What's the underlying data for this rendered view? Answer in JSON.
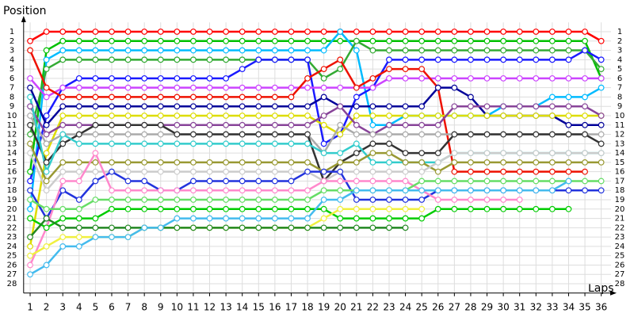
{
  "chart_data": {
    "type": "line",
    "y_label": "Position",
    "x_label": "Laps",
    "x": [
      1,
      2,
      3,
      4,
      5,
      6,
      7,
      8,
      9,
      10,
      11,
      12,
      13,
      14,
      15,
      16,
      17,
      18,
      19,
      20,
      21,
      22,
      23,
      24,
      25,
      26,
      27,
      28,
      29,
      30,
      31,
      32,
      33,
      34,
      35,
      36
    ],
    "xlim": [
      0.6,
      36.6
    ],
    "xticks": [
      1,
      2,
      3,
      4,
      5,
      6,
      7,
      8,
      9,
      10,
      11,
      12,
      13,
      14,
      15,
      16,
      17,
      18,
      19,
      20,
      21,
      22,
      23,
      24,
      25,
      26,
      27,
      28,
      29,
      30,
      31,
      32,
      33,
      34,
      35,
      36
    ],
    "ylim": [
      29,
      0
    ],
    "yticks": [
      1,
      2,
      3,
      4,
      5,
      6,
      7,
      8,
      9,
      10,
      11,
      12,
      13,
      14,
      15,
      16,
      17,
      18,
      19,
      20,
      21,
      22,
      23,
      24,
      25,
      26,
      27,
      28
    ],
    "grid": true,
    "series": [
      {
        "color": "#ff0000",
        "values": [
          2,
          1,
          1,
          1,
          1,
          1,
          1,
          1,
          1,
          1,
          1,
          1,
          1,
          1,
          1,
          1,
          1,
          1,
          1,
          1,
          1,
          1,
          1,
          1,
          1,
          1,
          1,
          1,
          1,
          1,
          1,
          1,
          1,
          1,
          1,
          2
        ]
      },
      {
        "color": "#00c000",
        "values": [
          16,
          3,
          2,
          2,
          2,
          2,
          2,
          2,
          2,
          2,
          2,
          2,
          2,
          2,
          2,
          2,
          2,
          2,
          2,
          2,
          2,
          2,
          2,
          2,
          2,
          2,
          2,
          2,
          2,
          2,
          2,
          2,
          2,
          2,
          2,
          6
        ]
      },
      {
        "color": "#00bbff",
        "values": [
          20,
          4,
          3,
          3,
          3,
          3,
          3,
          3,
          3,
          3,
          3,
          3,
          3,
          3,
          3,
          3,
          3,
          3,
          3,
          1,
          3,
          11,
          11,
          10,
          10,
          10,
          10,
          10,
          10,
          9,
          9,
          9,
          8,
          8,
          8,
          7
        ]
      },
      {
        "color": "#33aa33",
        "values": [
          12,
          5,
          4,
          4,
          4,
          4,
          4,
          4,
          4,
          4,
          4,
          4,
          4,
          4,
          4,
          4,
          4,
          4,
          6,
          5,
          2,
          3,
          3,
          3,
          3,
          3,
          3,
          3,
          3,
          3,
          3,
          3,
          3,
          3,
          3,
          5
        ]
      },
      {
        "color": "#1a1aff",
        "values": [
          17,
          10,
          7,
          6,
          6,
          6,
          6,
          6,
          6,
          6,
          6,
          6,
          6,
          5,
          4,
          4,
          4,
          4,
          13,
          12,
          8,
          7,
          4,
          4,
          4,
          4,
          4,
          4,
          4,
          4,
          4,
          4,
          4,
          4,
          3,
          4
        ]
      },
      {
        "color": "#cc44ff",
        "values": [
          6,
          8,
          7,
          7,
          7,
          7,
          7,
          7,
          7,
          7,
          7,
          7,
          7,
          7,
          7,
          7,
          7,
          7,
          7,
          7,
          7,
          7,
          6,
          6,
          6,
          6,
          6,
          6,
          6,
          6,
          6,
          6,
          6,
          6,
          6,
          6
        ]
      },
      {
        "color": "#ee1100",
        "values": [
          3,
          7,
          8,
          8,
          8,
          8,
          8,
          8,
          8,
          8,
          8,
          8,
          8,
          8,
          8,
          8,
          8,
          6,
          5,
          4,
          7,
          6,
          5,
          5,
          5,
          7,
          16,
          16,
          16,
          16,
          16,
          16,
          16,
          16,
          16,
          null
        ]
      },
      {
        "color": "#000099",
        "values": [
          7,
          11,
          9,
          9,
          9,
          9,
          9,
          9,
          9,
          9,
          9,
          9,
          9,
          9,
          9,
          9,
          9,
          9,
          8,
          9,
          9,
          9,
          9,
          9,
          9,
          7,
          7,
          8,
          10,
          10,
          10,
          10,
          10,
          11,
          11,
          11
        ]
      },
      {
        "color": "#dddd00",
        "values": [
          24,
          14,
          10,
          10,
          10,
          10,
          10,
          10,
          10,
          10,
          10,
          10,
          10,
          10,
          10,
          10,
          10,
          10,
          11,
          12,
          10,
          10,
          10,
          10,
          10,
          10,
          10,
          10,
          10,
          10,
          10,
          10,
          10,
          10,
          10,
          10
        ]
      },
      {
        "color": "#884499",
        "values": [
          9,
          12,
          11,
          11,
          11,
          11,
          11,
          11,
          11,
          11,
          11,
          11,
          11,
          11,
          11,
          11,
          11,
          11,
          10,
          9,
          11,
          12,
          11,
          11,
          11,
          11,
          9,
          9,
          9,
          9,
          9,
          9,
          9,
          9,
          9,
          10
        ]
      },
      {
        "color": "#aaaaaa",
        "values": [
          10,
          13,
          12,
          12,
          12,
          12,
          12,
          12,
          12,
          12,
          12,
          12,
          12,
          12,
          12,
          12,
          12,
          12,
          14,
          11,
          12,
          12,
          12,
          12,
          12,
          12,
          12,
          12,
          12,
          12,
          12,
          12,
          12,
          12,
          12,
          12
        ]
      },
      {
        "color": "#333333",
        "values": [
          11,
          15,
          13,
          12,
          11,
          11,
          11,
          11,
          11,
          12,
          12,
          12,
          12,
          12,
          12,
          12,
          12,
          12,
          17,
          15,
          14,
          13,
          13,
          14,
          14,
          14,
          12,
          12,
          12,
          12,
          12,
          12,
          12,
          12,
          12,
          13
        ]
      },
      {
        "color": "#33cccc",
        "values": [
          8,
          16,
          12,
          13,
          13,
          13,
          13,
          13,
          13,
          13,
          13,
          13,
          13,
          13,
          13,
          13,
          13,
          13,
          14,
          14,
          13,
          15,
          15,
          15,
          15,
          15,
          14,
          14,
          14,
          14,
          14,
          14,
          14,
          14,
          14,
          14
        ]
      },
      {
        "color": "#999933",
        "values": [
          13,
          17,
          15,
          15,
          15,
          15,
          15,
          15,
          15,
          15,
          15,
          15,
          15,
          15,
          15,
          15,
          15,
          15,
          16,
          15,
          15,
          14,
          14,
          15,
          15,
          16,
          15,
          15,
          15,
          15,
          15,
          15,
          15,
          15,
          15,
          15
        ]
      },
      {
        "color": "#cccccc",
        "values": [
          14,
          18,
          16,
          16,
          16,
          16,
          16,
          16,
          16,
          16,
          16,
          16,
          16,
          16,
          16,
          16,
          16,
          16,
          17,
          16,
          16,
          16,
          16,
          16,
          16,
          15,
          14,
          14,
          14,
          14,
          14,
          14,
          14,
          14,
          14,
          14
        ]
      },
      {
        "color": "#2233dd",
        "values": [
          18,
          21,
          18,
          19,
          17,
          16,
          17,
          17,
          18,
          18,
          17,
          17,
          17,
          17,
          17,
          17,
          17,
          16,
          16,
          16,
          19,
          19,
          19,
          19,
          19,
          18,
          18,
          18,
          18,
          18,
          18,
          18,
          18,
          18,
          18,
          18
        ]
      },
      {
        "color": "#ff88cc",
        "values": [
          26,
          22,
          17,
          17,
          14,
          18,
          18,
          18,
          18,
          18,
          18,
          18,
          18,
          18,
          18,
          18,
          18,
          18,
          17,
          17,
          17,
          17,
          17,
          17,
          18,
          19,
          19,
          19,
          19,
          19,
          19,
          null,
          null,
          null,
          null,
          null
        ]
      },
      {
        "color": "#66dd66",
        "values": [
          19,
          20,
          20,
          20,
          19,
          19,
          19,
          19,
          19,
          19,
          19,
          19,
          19,
          19,
          19,
          19,
          19,
          19,
          18,
          18,
          18,
          18,
          18,
          18,
          17,
          17,
          17,
          17,
          17,
          17,
          17,
          17,
          17,
          17,
          17,
          17
        ]
      },
      {
        "color": "#00cc00",
        "values": [
          21,
          22,
          21,
          21,
          21,
          20,
          20,
          20,
          20,
          20,
          20,
          20,
          20,
          20,
          20,
          20,
          20,
          20,
          20,
          21,
          21,
          21,
          21,
          21,
          21,
          20,
          20,
          20,
          20,
          20,
          20,
          20,
          20,
          20,
          null,
          null
        ]
      },
      {
        "color": "#f0f040",
        "values": [
          25,
          24,
          23,
          23,
          23,
          23,
          23,
          22,
          22,
          22,
          22,
          22,
          22,
          22,
          22,
          22,
          22,
          22,
          21,
          20,
          20,
          20,
          20,
          20,
          20,
          null,
          null,
          null,
          null,
          null,
          null,
          null,
          null,
          null,
          null,
          null
        ]
      },
      {
        "color": "#228822",
        "values": [
          23,
          21,
          22,
          22,
          22,
          22,
          22,
          22,
          22,
          22,
          22,
          22,
          22,
          22,
          22,
          22,
          22,
          22,
          22,
          22,
          22,
          22,
          22,
          22,
          null,
          null,
          null,
          null,
          null,
          null,
          null,
          null,
          null,
          null,
          null,
          null
        ]
      },
      {
        "color": "#44bbee",
        "values": [
          27,
          26,
          24,
          24,
          23,
          23,
          23,
          22,
          22,
          21,
          21,
          21,
          21,
          21,
          21,
          21,
          21,
          21,
          19,
          19,
          18,
          18,
          18,
          18,
          18,
          18,
          18,
          18,
          18,
          18,
          18,
          18,
          18,
          17,
          null,
          null
        ]
      }
    ]
  }
}
